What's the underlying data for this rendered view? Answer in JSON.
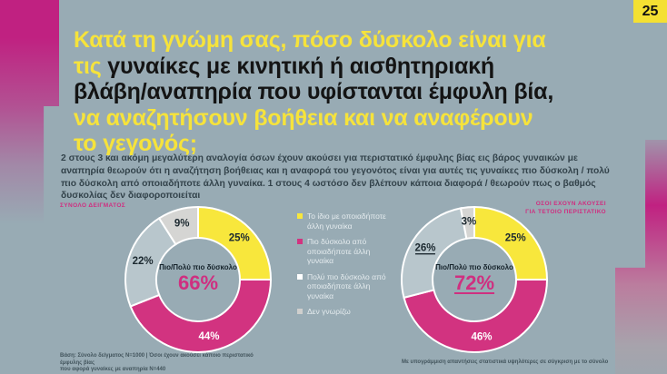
{
  "page": {
    "number": "25",
    "background_color": "#98abb4",
    "accent_yellow": "#f6e33b",
    "accent_pink": "#cf2f80"
  },
  "title": {
    "line1": "Κατά τη γνώμη σας, πόσο δύσκολο είναι για",
    "line2_highlight": "τις",
    "line2_rest": " γυναίκες με κινητική ή αισθητηριακή",
    "line3": "βλάβη/αναπηρία που υφίστανται έμφυλη βία,",
    "line4": "να αναζητήσουν βοήθεια και να αναφέρουν",
    "line5": "το γεγονός;"
  },
  "intro": "2 στους 3 και ακόμη μεγαλύτερη αναλογία όσων έχουν ακούσει για περιστατικό έμφυλης βίας εις βάρος γυναικών με αναπηρία θεωρούν ότι η αναζήτηση βοήθειας και η αναφορά του γεγονότος είναι για αυτές τις γυναίκες πιο δύσκολη / πολύ πιο δύσκολη από οποιαδήποτε άλλη γυναίκα. 1 στους 4 ωστόσο δεν βλέπουν κάποια διαφορά / θεωρούν πως ο βαθμός δυσκολίας δεν διαφοροποιείται",
  "legend": {
    "items": [
      {
        "label": "Το ίδιο με οποιαδήποτε άλλη γυναίκα",
        "color": "#f8e73c"
      },
      {
        "label": "Πιο δύσκολο από οποιαδήποτε άλλη γυναίκα",
        "color": "#d23380"
      },
      {
        "label": "Πολύ πιο δύσκολο από οποιαδήποτε άλλη γυναίκα",
        "color": "#ffffff"
      },
      {
        "label": "Δεν γνωρίζω",
        "color": "#cfcfcd"
      }
    ]
  },
  "chart_data": [
    {
      "type": "pie",
      "style": "donut",
      "title": "ΣΥΝΟΛΟ ΔΕΙΓΜΑΤΟΣ",
      "center_label": "Πιο/Πολύ πιο δύσκολο",
      "center_value": "66%",
      "center_value_underlined": false,
      "categories": [
        "Το ίδιο με οποιαδήποτε άλλη γυναίκα",
        "Πιο δύσκολο από οποιαδήποτε άλλη γυναίκα",
        "Πολύ πιο δύσκολο από οποιαδήποτε άλλη γυναίκα",
        "Δεν γνωρίζω"
      ],
      "values": [
        25,
        44,
        22,
        9
      ],
      "segments": [
        {
          "label": "Το ίδιο με οποιαδήποτε άλλη γυναίκα",
          "value": 25,
          "color": "#f8e73c",
          "label_color": "#1c2930",
          "underline": false
        },
        {
          "label": "Πιο δύσκολο από οποιαδήποτε άλλη γυναίκα",
          "value": 44,
          "color": "#d23380",
          "label_color": "#ffffff",
          "underline": false
        },
        {
          "label": "Πολύ πιο δύσκολο από οποιαδήποτε άλλη γυναίκα",
          "value": 22,
          "color": "#b8c6cc",
          "label_color": "#1c2930",
          "underline": false
        },
        {
          "label": "Δεν γνωρίζω",
          "value": 9,
          "color": "#d5d5d3",
          "label_color": "#1c2930",
          "underline": false
        }
      ]
    },
    {
      "type": "pie",
      "style": "donut",
      "title": "ΟΣΟΙ ΕΧΟΥΝ ΑΚΟΥΣΕΙ ΓΙΑ ΤΕΤΟΙΟ ΠΕΡΙΣΤΑΤΙΚΟ",
      "title_lines": [
        "ΟΣΟΙ ΕΧΟΥΝ ΑΚΟΥΣΕΙ",
        "ΓΙΑ ΤΕΤΟΙΟ ΠΕΡΙΣΤΑΤΙΚΟ"
      ],
      "center_label": "Πιο/Πολύ πιο δύσκολο",
      "center_value": "72%",
      "center_value_underlined": true,
      "categories": [
        "Το ίδιο με οποιαδήποτε άλλη γυναίκα",
        "Πιο δύσκολο από οποιαδήποτε άλλη γυναίκα",
        "Πολύ πιο δύσκολο από οποιαδήποτε άλλη γυναίκα",
        "Δεν γνωρίζω"
      ],
      "values": [
        25,
        46,
        26,
        3
      ],
      "segments": [
        {
          "label": "Το ίδιο με οποιαδήποτε άλλη γυναίκα",
          "value": 25,
          "color": "#f8e73c",
          "label_color": "#1c2930",
          "underline": false
        },
        {
          "label": "Πιο δύσκολο από οποιαδήποτε άλλη γυναίκα",
          "value": 46,
          "color": "#d23380",
          "label_color": "#ffffff",
          "underline": false
        },
        {
          "label": "Πολύ πιο δύσκολο από οποιαδήποτε άλλη γυναίκα",
          "value": 26,
          "color": "#b8c6cc",
          "label_color": "#1c2930",
          "underline": true
        },
        {
          "label": "Δεν γνωρίζω",
          "value": 3,
          "color": "#d5d5d3",
          "label_color": "#1c2930",
          "underline": false
        }
      ]
    }
  ],
  "footnotes": {
    "left_line1": "Βάση: Σύνολο δείγματος Ν=1000 | Όσοι έχουν ακούσει κάποιο περιστατικό έμφυλης βίας",
    "left_line2": "που αφορά γυναίκες με αναπηρία Ν=440",
    "right": "Με υπογράμμιση απαντήσεις στατιστικά υψηλότερες σε σύγκριση με το σύνολο"
  }
}
